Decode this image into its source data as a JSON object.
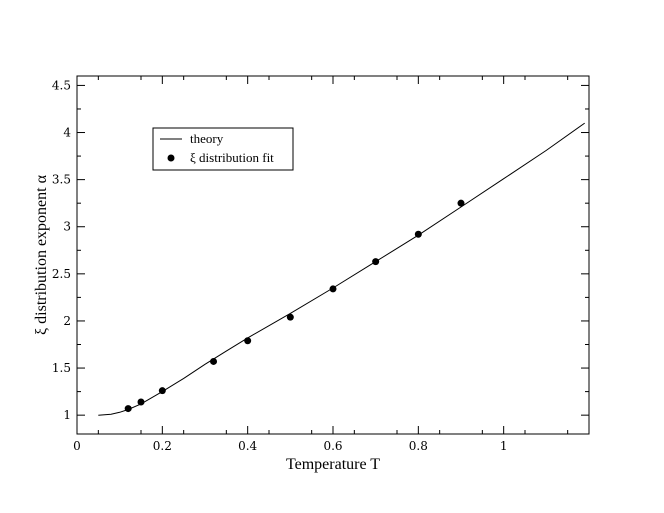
{
  "chart_data": {
    "type": "scatter",
    "xlabel": "Temperature  T",
    "ylabel": "ξ distribution exponent  α",
    "xlim": [
      0,
      1.2
    ],
    "ylim": [
      0.8,
      4.6
    ],
    "x_ticks": [
      {
        "value": 0,
        "label": "0"
      },
      {
        "value": 0.2,
        "label": "0.2"
      },
      {
        "value": 0.4,
        "label": "0.4"
      },
      {
        "value": 0.6,
        "label": "0.6"
      },
      {
        "value": 0.8,
        "label": "0.8"
      },
      {
        "value": 1.0,
        "label": "1"
      }
    ],
    "y_ticks": [
      {
        "value": 1,
        "label": "1"
      },
      {
        "value": 1.5,
        "label": "1.5"
      },
      {
        "value": 2,
        "label": "2"
      },
      {
        "value": 2.5,
        "label": "2.5"
      },
      {
        "value": 3,
        "label": "3"
      },
      {
        "value": 3.5,
        "label": "3.5"
      },
      {
        "value": 4,
        "label": "4"
      },
      {
        "value": 4.5,
        "label": "4.5"
      }
    ],
    "grid": false,
    "legend_position": "top-left",
    "series": [
      {
        "name": "theory",
        "kind": "line",
        "x": [
          0.05,
          0.08,
          0.1,
          0.12,
          0.15,
          0.2,
          0.25,
          0.3,
          0.35,
          0.4,
          0.5,
          0.6,
          0.7,
          0.8,
          0.9,
          1.0,
          1.1,
          1.19
        ],
        "y": [
          1.0,
          1.01,
          1.03,
          1.06,
          1.12,
          1.25,
          1.39,
          1.54,
          1.68,
          1.82,
          2.08,
          2.35,
          2.63,
          2.91,
          3.21,
          3.51,
          3.81,
          4.1
        ]
      },
      {
        "name": "ξ distribution fit",
        "kind": "points",
        "x": [
          0.12,
          0.15,
          0.2,
          0.32,
          0.4,
          0.5,
          0.6,
          0.7,
          0.8,
          0.9
        ],
        "y": [
          1.07,
          1.14,
          1.26,
          1.57,
          1.79,
          2.04,
          2.34,
          2.63,
          2.92,
          3.25
        ]
      }
    ]
  }
}
